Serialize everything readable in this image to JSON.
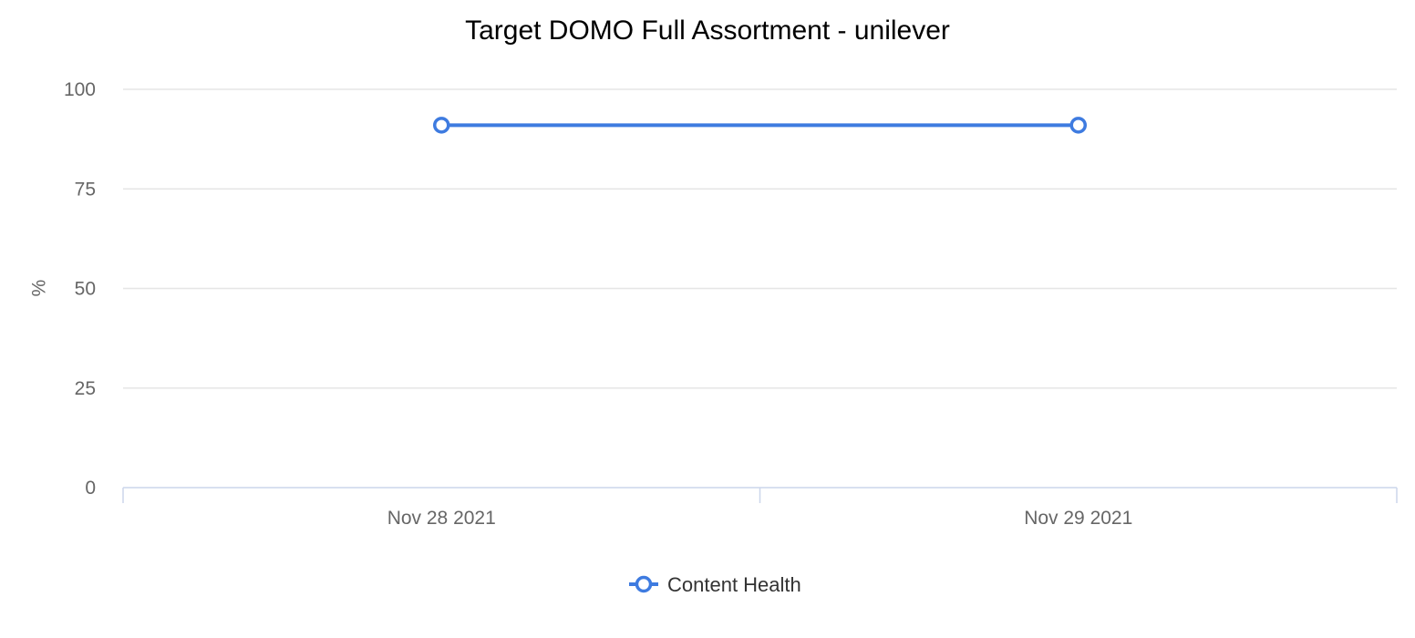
{
  "chart_data": {
    "type": "line",
    "title": "Target DOMO Full Assortment - unilever",
    "xlabel": "",
    "ylabel": "%",
    "categories": [
      "Nov 28 2021",
      "Nov 29 2021"
    ],
    "yticks": [
      0,
      25,
      50,
      75,
      100
    ],
    "ylim": [
      0,
      100
    ],
    "grid": true,
    "legend_position": "bottom-center",
    "series": [
      {
        "name": "Content Health",
        "color": "#3e7be0",
        "marker": "hollow-circle",
        "values": [
          91,
          91
        ]
      }
    ]
  }
}
